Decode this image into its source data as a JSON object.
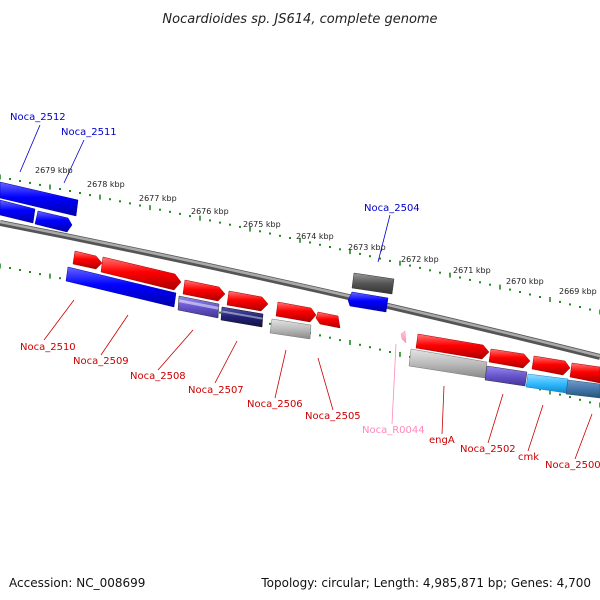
{
  "header": {
    "title": "Nocardioides sp. JS614, complete genome"
  },
  "footer": {
    "accession": "Accession: NC_008699",
    "summary": "Topology: circular; Length: 4,985,871 bp; Genes: 4,700"
  },
  "colors": {
    "forward_gene": "#ff0000",
    "reverse_gene": "#0000ff",
    "rna": "#ff99cc",
    "backbone": "#888888",
    "tick": "#228822",
    "label_forward": "#0000cc",
    "label_reverse": "#cc0000",
    "label_rna": "#ff88bb",
    "cog_gray": "#bbbbbb",
    "cog_dark": "#555555",
    "cog_purple": "#6655cc",
    "cog_navy": "#222277",
    "cog_cyan": "#33bbff",
    "cog_steel": "#4477aa"
  },
  "axis": {
    "unit": "kbp",
    "ticks": [
      {
        "label": "2679 kbp"
      },
      {
        "label": "2678 kbp"
      },
      {
        "label": "2677 kbp"
      },
      {
        "label": "2676 kbp"
      },
      {
        "label": "2675 kbp"
      },
      {
        "label": "2674 kbp"
      },
      {
        "label": "2673 kbp"
      },
      {
        "label": "2672 kbp"
      },
      {
        "label": "2671 kbp"
      },
      {
        "label": "2670 kbp"
      },
      {
        "label": "2669 kbp"
      }
    ]
  },
  "genes_upper": [
    {
      "name": "Noca_2512",
      "strand": "reverse"
    },
    {
      "name": "Noca_2511",
      "strand": "reverse"
    },
    {
      "name": "Noca_2504",
      "strand": "reverse"
    }
  ],
  "genes_lower": [
    {
      "name": "Noca_2510",
      "strand": "forward"
    },
    {
      "name": "Noca_2509",
      "strand": "forward"
    },
    {
      "name": "Noca_2508",
      "strand": "forward"
    },
    {
      "name": "Noca_2507",
      "strand": "forward"
    },
    {
      "name": "Noca_2506",
      "strand": "forward"
    },
    {
      "name": "Noca_2505",
      "strand": "forward"
    },
    {
      "name": "Noca_R0044",
      "strand": "forward"
    },
    {
      "name": "engA",
      "strand": "forward"
    },
    {
      "name": "Noca_2502",
      "strand": "forward"
    },
    {
      "name": "cmk",
      "strand": "forward"
    },
    {
      "name": "Noca_2500",
      "strand": "forward"
    }
  ]
}
